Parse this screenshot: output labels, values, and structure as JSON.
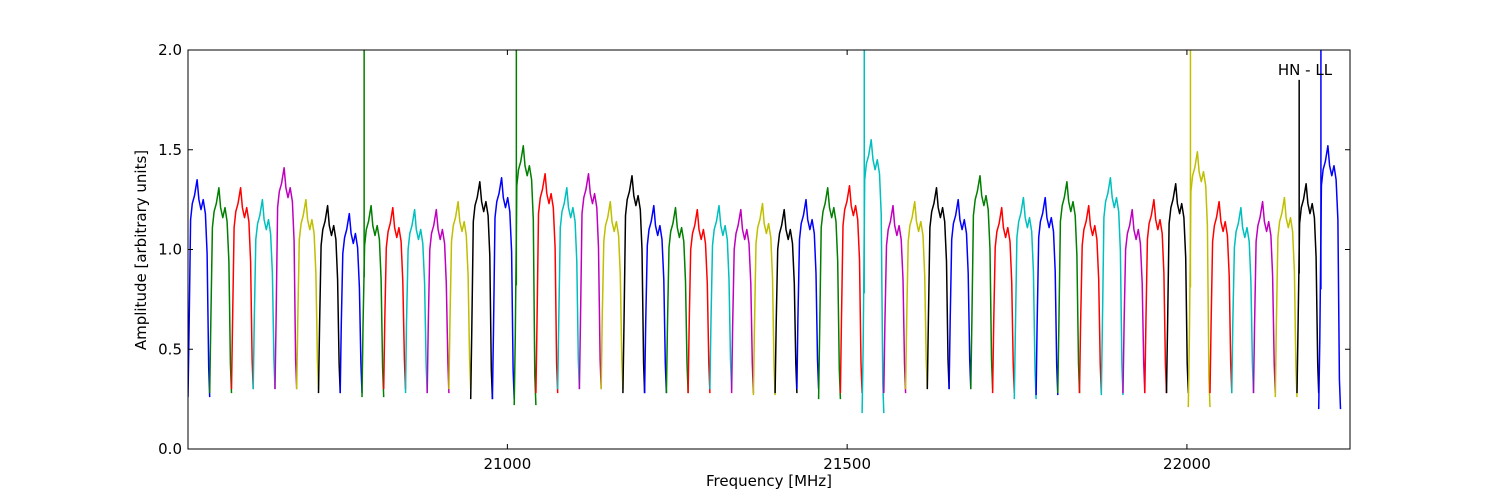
{
  "chart_data": {
    "type": "line",
    "annotation": "HN - LL",
    "xlabel": "Frequency [MHz]",
    "ylabel": "Amplitude [arbitrary units]",
    "xlim": [
      20530,
      22240
    ],
    "ylim": [
      0.0,
      2.0
    ],
    "x_ticks": [
      21000,
      21500,
      22000
    ],
    "y_ticks": [
      0.0,
      0.5,
      1.0,
      1.5,
      2.0
    ],
    "x_tick_labels": [
      "21000",
      "21500",
      "22000"
    ],
    "y_tick_labels": [
      "0.0",
      "0.5",
      "1.0",
      "1.5",
      "2.0"
    ],
    "grid": false,
    "legend": "none",
    "band_width_mhz": 32,
    "colors": [
      "#0000ff",
      "#007f00",
      "#ff0000",
      "#00bfbf",
      "#bf00bf",
      "#bfbf00",
      "#000000"
    ],
    "bands": [
      {
        "start": 20530,
        "peak": 1.35,
        "min": 0.26,
        "color": "#0000ff"
      },
      {
        "start": 20562,
        "peak": 1.31,
        "min": 0.28,
        "color": "#007f00"
      },
      {
        "start": 20594,
        "peak": 1.31,
        "min": 0.3,
        "color": "#ff0000"
      },
      {
        "start": 20626,
        "peak": 1.25,
        "min": 0.3,
        "color": "#00bfbf"
      },
      {
        "start": 20658,
        "peak": 1.41,
        "min": 0.3,
        "color": "#bf00bf"
      },
      {
        "start": 20690,
        "peak": 1.25,
        "min": 0.3,
        "color": "#bfbf00"
      },
      {
        "start": 20722,
        "peak": 1.22,
        "min": 0.28,
        "color": "#000000"
      },
      {
        "start": 20754,
        "peak": 1.18,
        "min": 0.28,
        "color": "#0000ff"
      },
      {
        "start": 20786,
        "peak": 1.22,
        "min": 0.26,
        "color": "#007f00",
        "spike": 2.0
      },
      {
        "start": 20818,
        "peak": 1.21,
        "min": 0.3,
        "color": "#ff0000"
      },
      {
        "start": 20850,
        "peak": 1.2,
        "min": 0.28,
        "color": "#00bfbf"
      },
      {
        "start": 20882,
        "peak": 1.2,
        "min": 0.28,
        "color": "#bf00bf"
      },
      {
        "start": 20914,
        "peak": 1.24,
        "min": 0.3,
        "color": "#bfbf00"
      },
      {
        "start": 20946,
        "peak": 1.34,
        "min": 0.25,
        "color": "#000000"
      },
      {
        "start": 20978,
        "peak": 1.36,
        "min": 0.25,
        "color": "#0000ff"
      },
      {
        "start": 21010,
        "peak": 1.52,
        "min": 0.22,
        "color": "#007f00",
        "spike": 2.0
      },
      {
        "start": 21042,
        "peak": 1.38,
        "min": 0.28,
        "color": "#ff0000"
      },
      {
        "start": 21074,
        "peak": 1.31,
        "min": 0.3,
        "color": "#00bfbf"
      },
      {
        "start": 21106,
        "peak": 1.38,
        "min": 0.3,
        "color": "#bf00bf"
      },
      {
        "start": 21138,
        "peak": 1.24,
        "min": 0.3,
        "color": "#bfbf00"
      },
      {
        "start": 21170,
        "peak": 1.37,
        "min": 0.28,
        "color": "#000000"
      },
      {
        "start": 21202,
        "peak": 1.22,
        "min": 0.28,
        "color": "#0000ff"
      },
      {
        "start": 21234,
        "peak": 1.21,
        "min": 0.28,
        "color": "#007f00"
      },
      {
        "start": 21266,
        "peak": 1.2,
        "min": 0.28,
        "color": "#ff0000"
      },
      {
        "start": 21298,
        "peak": 1.22,
        "min": 0.3,
        "color": "#00bfbf"
      },
      {
        "start": 21330,
        "peak": 1.2,
        "min": 0.28,
        "color": "#bf00bf"
      },
      {
        "start": 21362,
        "peak": 1.23,
        "min": 0.27,
        "color": "#bfbf00"
      },
      {
        "start": 21394,
        "peak": 1.2,
        "min": 0.28,
        "color": "#000000"
      },
      {
        "start": 21426,
        "peak": 1.25,
        "min": 0.3,
        "color": "#0000ff"
      },
      {
        "start": 21458,
        "peak": 1.31,
        "min": 0.25,
        "color": "#007f00"
      },
      {
        "start": 21490,
        "peak": 1.32,
        "min": 0.28,
        "color": "#ff0000"
      },
      {
        "start": 21522,
        "peak": 1.55,
        "min": 0.18,
        "color": "#00bfbf",
        "spike": 2.0
      },
      {
        "start": 21554,
        "peak": 1.22,
        "min": 0.28,
        "color": "#bf00bf"
      },
      {
        "start": 21586,
        "peak": 1.24,
        "min": 0.3,
        "color": "#bfbf00"
      },
      {
        "start": 21618,
        "peak": 1.31,
        "min": 0.3,
        "color": "#000000"
      },
      {
        "start": 21650,
        "peak": 1.25,
        "min": 0.3,
        "color": "#0000ff"
      },
      {
        "start": 21682,
        "peak": 1.37,
        "min": 0.3,
        "color": "#007f00"
      },
      {
        "start": 21714,
        "peak": 1.21,
        "min": 0.28,
        "color": "#ff0000"
      },
      {
        "start": 21746,
        "peak": 1.26,
        "min": 0.25,
        "color": "#00bfbf"
      },
      {
        "start": 21778,
        "peak": 1.26,
        "min": 0.27,
        "color": "#0000ff"
      },
      {
        "start": 21810,
        "peak": 1.34,
        "min": 0.28,
        "color": "#007f00"
      },
      {
        "start": 21842,
        "peak": 1.22,
        "min": 0.28,
        "color": "#ff0000"
      },
      {
        "start": 21874,
        "peak": 1.36,
        "min": 0.27,
        "color": "#00bfbf"
      },
      {
        "start": 21906,
        "peak": 1.2,
        "min": 0.28,
        "color": "#bf00bf"
      },
      {
        "start": 21938,
        "peak": 1.25,
        "min": 0.28,
        "color": "#ff0000"
      },
      {
        "start": 21970,
        "peak": 1.33,
        "min": 0.28,
        "color": "#000000"
      },
      {
        "start": 22002,
        "peak": 1.49,
        "min": 0.21,
        "color": "#bfbf00",
        "spike": 2.0
      },
      {
        "start": 22034,
        "peak": 1.24,
        "min": 0.28,
        "color": "#ff0000"
      },
      {
        "start": 22066,
        "peak": 1.21,
        "min": 0.28,
        "color": "#00bfbf"
      },
      {
        "start": 22098,
        "peak": 1.24,
        "min": 0.28,
        "color": "#bf00bf"
      },
      {
        "start": 22130,
        "peak": 1.26,
        "min": 0.26,
        "color": "#bfbf00"
      },
      {
        "start": 22162,
        "peak": 1.33,
        "min": 0.28,
        "color": "#000000",
        "spike": 1.85
      },
      {
        "start": 22194,
        "peak": 1.52,
        "min": 0.2,
        "color": "#0000ff",
        "spike": 2.0
      }
    ]
  }
}
